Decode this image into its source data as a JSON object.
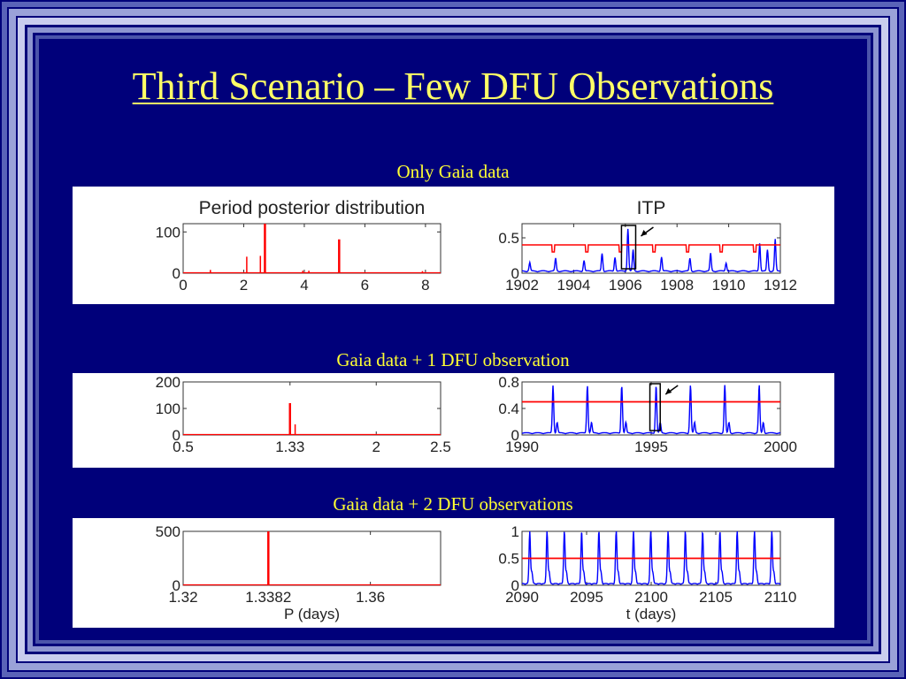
{
  "slide": {
    "title": "Third Scenario – Few DFU Observations",
    "colors": {
      "background": "#00007a",
      "frame_light": "#b8bfe4",
      "title": "#ffff66",
      "caption": "#ffff33",
      "posterior": "#ff0000",
      "itp_curve": "#0000ff",
      "threshold": "#ff0000"
    }
  },
  "panels": [
    {
      "caption": "Only Gaia data"
    },
    {
      "caption": "Gaia data + 1 DFU observation"
    },
    {
      "caption": "Gaia data + 2 DFU observations"
    }
  ],
  "chart_data": [
    {
      "type": "bar",
      "title": "Period posterior distribution",
      "xlim": [
        0,
        8.5
      ],
      "ylim": [
        0,
        120
      ],
      "xticks": [
        0,
        2,
        4,
        6,
        8
      ],
      "xtick_labels": [
        "0",
        "2",
        "4",
        "6",
        "8"
      ],
      "yticks": [
        0,
        100
      ],
      "ytick_labels": [
        "0",
        "100"
      ],
      "x": [
        0.9,
        2.1,
        2.55,
        2.7,
        3.95,
        4.15,
        5.15,
        7.9
      ],
      "values": [
        8,
        40,
        42,
        120,
        6,
        6,
        82,
        5
      ]
    },
    {
      "type": "line",
      "title": "ITP",
      "xlim": [
        1902,
        1912
      ],
      "ylim": [
        0,
        0.7
      ],
      "xticks": [
        1902,
        1904,
        1906,
        1908,
        1910,
        1912
      ],
      "xtick_labels": [
        "1902",
        "1904",
        "1906",
        "1908",
        "1910",
        "1912"
      ],
      "yticks": [
        0,
        0.5
      ],
      "ytick_labels": [
        "0",
        "0.5"
      ],
      "threshold": 0.4,
      "dips": [
        1903.2,
        1904.5,
        1905.8,
        1907.1,
        1908.4,
        1909.7,
        1911.0
      ],
      "peaks": [
        [
          1902.3,
          0.12
        ],
        [
          1903.3,
          0.18
        ],
        [
          1904.4,
          0.15
        ],
        [
          1905.1,
          0.25
        ],
        [
          1905.6,
          0.2
        ],
        [
          1906.1,
          0.6
        ],
        [
          1906.3,
          0.3
        ],
        [
          1907.4,
          0.2
        ],
        [
          1908.5,
          0.18
        ],
        [
          1909.3,
          0.25
        ],
        [
          1909.9,
          0.12
        ],
        [
          1911.2,
          0.4
        ],
        [
          1911.5,
          0.3
        ],
        [
          1911.8,
          0.45
        ]
      ],
      "highlight": [
        1905.85,
        1906.4
      ]
    },
    {
      "type": "bar",
      "xlim": [
        0.5,
        2.5
      ],
      "ylim": [
        0,
        200
      ],
      "xticks": [
        0.5,
        1.33,
        2,
        2.5
      ],
      "xtick_labels": [
        "0.5",
        "1.33",
        "2",
        "2.5"
      ],
      "yticks": [
        0,
        100,
        200
      ],
      "ytick_labels": [
        "0",
        "100",
        "200"
      ],
      "x": [
        1.33,
        1.37
      ],
      "values": [
        120,
        40
      ]
    },
    {
      "type": "line",
      "xlim": [
        1990,
        2000
      ],
      "ylim": [
        0,
        0.8
      ],
      "xticks": [
        1990,
        1995,
        2000
      ],
      "xtick_labels": [
        "1990",
        "1995",
        "2000"
      ],
      "yticks": [
        0,
        0.4,
        0.8
      ],
      "ytick_labels": [
        "0",
        "0.4",
        "0.8"
      ],
      "threshold": 0.5,
      "peak_period": 1.33,
      "peak_start": 1991.2,
      "peak_height": 0.72,
      "highlight": [
        1994.95,
        1995.35
      ]
    },
    {
      "type": "bar",
      "xlim": [
        1.32,
        1.375
      ],
      "ylim": [
        0,
        500
      ],
      "xticks": [
        1.32,
        1.3382,
        1.36
      ],
      "xtick_labels": [
        "1.32",
        "1.3382",
        "1.36"
      ],
      "yticks": [
        0,
        500
      ],
      "ytick_labels": [
        "0",
        "500"
      ],
      "xlabel": "P (days)",
      "x": [
        1.3382
      ],
      "values": [
        500
      ]
    },
    {
      "type": "line",
      "xlim": [
        2090,
        2110
      ],
      "ylim": [
        0,
        1
      ],
      "xticks": [
        2090,
        2095,
        2100,
        2105,
        2110
      ],
      "xtick_labels": [
        "2090",
        "2095",
        "2100",
        "2105",
        "2110"
      ],
      "yticks": [
        0,
        0.5,
        1
      ],
      "ytick_labels": [
        "0",
        "0.5",
        "1"
      ],
      "xlabel": "t (days)",
      "threshold": 0.5,
      "peak_period": 1.3382,
      "peak_start": 2090.6,
      "peak_height": 0.98
    }
  ]
}
